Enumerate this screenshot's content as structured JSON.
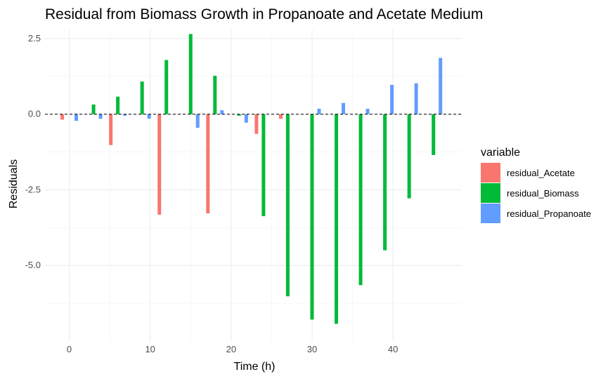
{
  "chart_data": {
    "type": "bar",
    "title": "Residual from Biomass Growth in Propanoate and Acetate Medium",
    "xlabel": "Time (h)",
    "ylabel": "Residuals",
    "xlim": [
      -3,
      48.5
    ],
    "ylim": [
      -7.5,
      2.8
    ],
    "xticks": [
      0,
      10,
      20,
      30,
      40
    ],
    "xtick_labels": [
      "0",
      "10",
      "20",
      "30",
      "40"
    ],
    "yticks": [
      2.5,
      0.0,
      -2.5,
      -5.0
    ],
    "ytick_labels": [
      "2.5",
      "0.0",
      "-2.5",
      "-5.0"
    ],
    "grid": true,
    "reference_line": 0,
    "legend": {
      "title": "variable",
      "position": "right"
    },
    "x": [
      0,
      3,
      6,
      9,
      12,
      15,
      18,
      21,
      24,
      27,
      30,
      33,
      36,
      39,
      42,
      45
    ],
    "series": [
      {
        "name": "residual_Acetate",
        "color": "#F8766D",
        "values": [
          -0.18,
          0.0,
          -1.02,
          0.0,
          -3.32,
          0.0,
          -3.28,
          0.0,
          -0.65,
          -0.15,
          0.0,
          0.0,
          0.0,
          0.0,
          0.0,
          0.0
        ]
      },
      {
        "name": "residual_Biomass",
        "color": "#00BA38",
        "values": [
          0.0,
          0.32,
          0.58,
          1.08,
          1.79,
          2.65,
          1.27,
          -0.05,
          -3.37,
          -6.02,
          -6.79,
          -6.93,
          -5.65,
          -4.5,
          -2.78,
          -1.35
        ]
      },
      {
        "name": "residual_Propanoate",
        "color": "#619CFF",
        "values": [
          -0.22,
          -0.15,
          -0.05,
          -0.15,
          0.0,
          -0.45,
          0.13,
          -0.28,
          0.0,
          0.0,
          0.18,
          0.37,
          0.18,
          0.97,
          1.02,
          1.86
        ]
      }
    ]
  }
}
